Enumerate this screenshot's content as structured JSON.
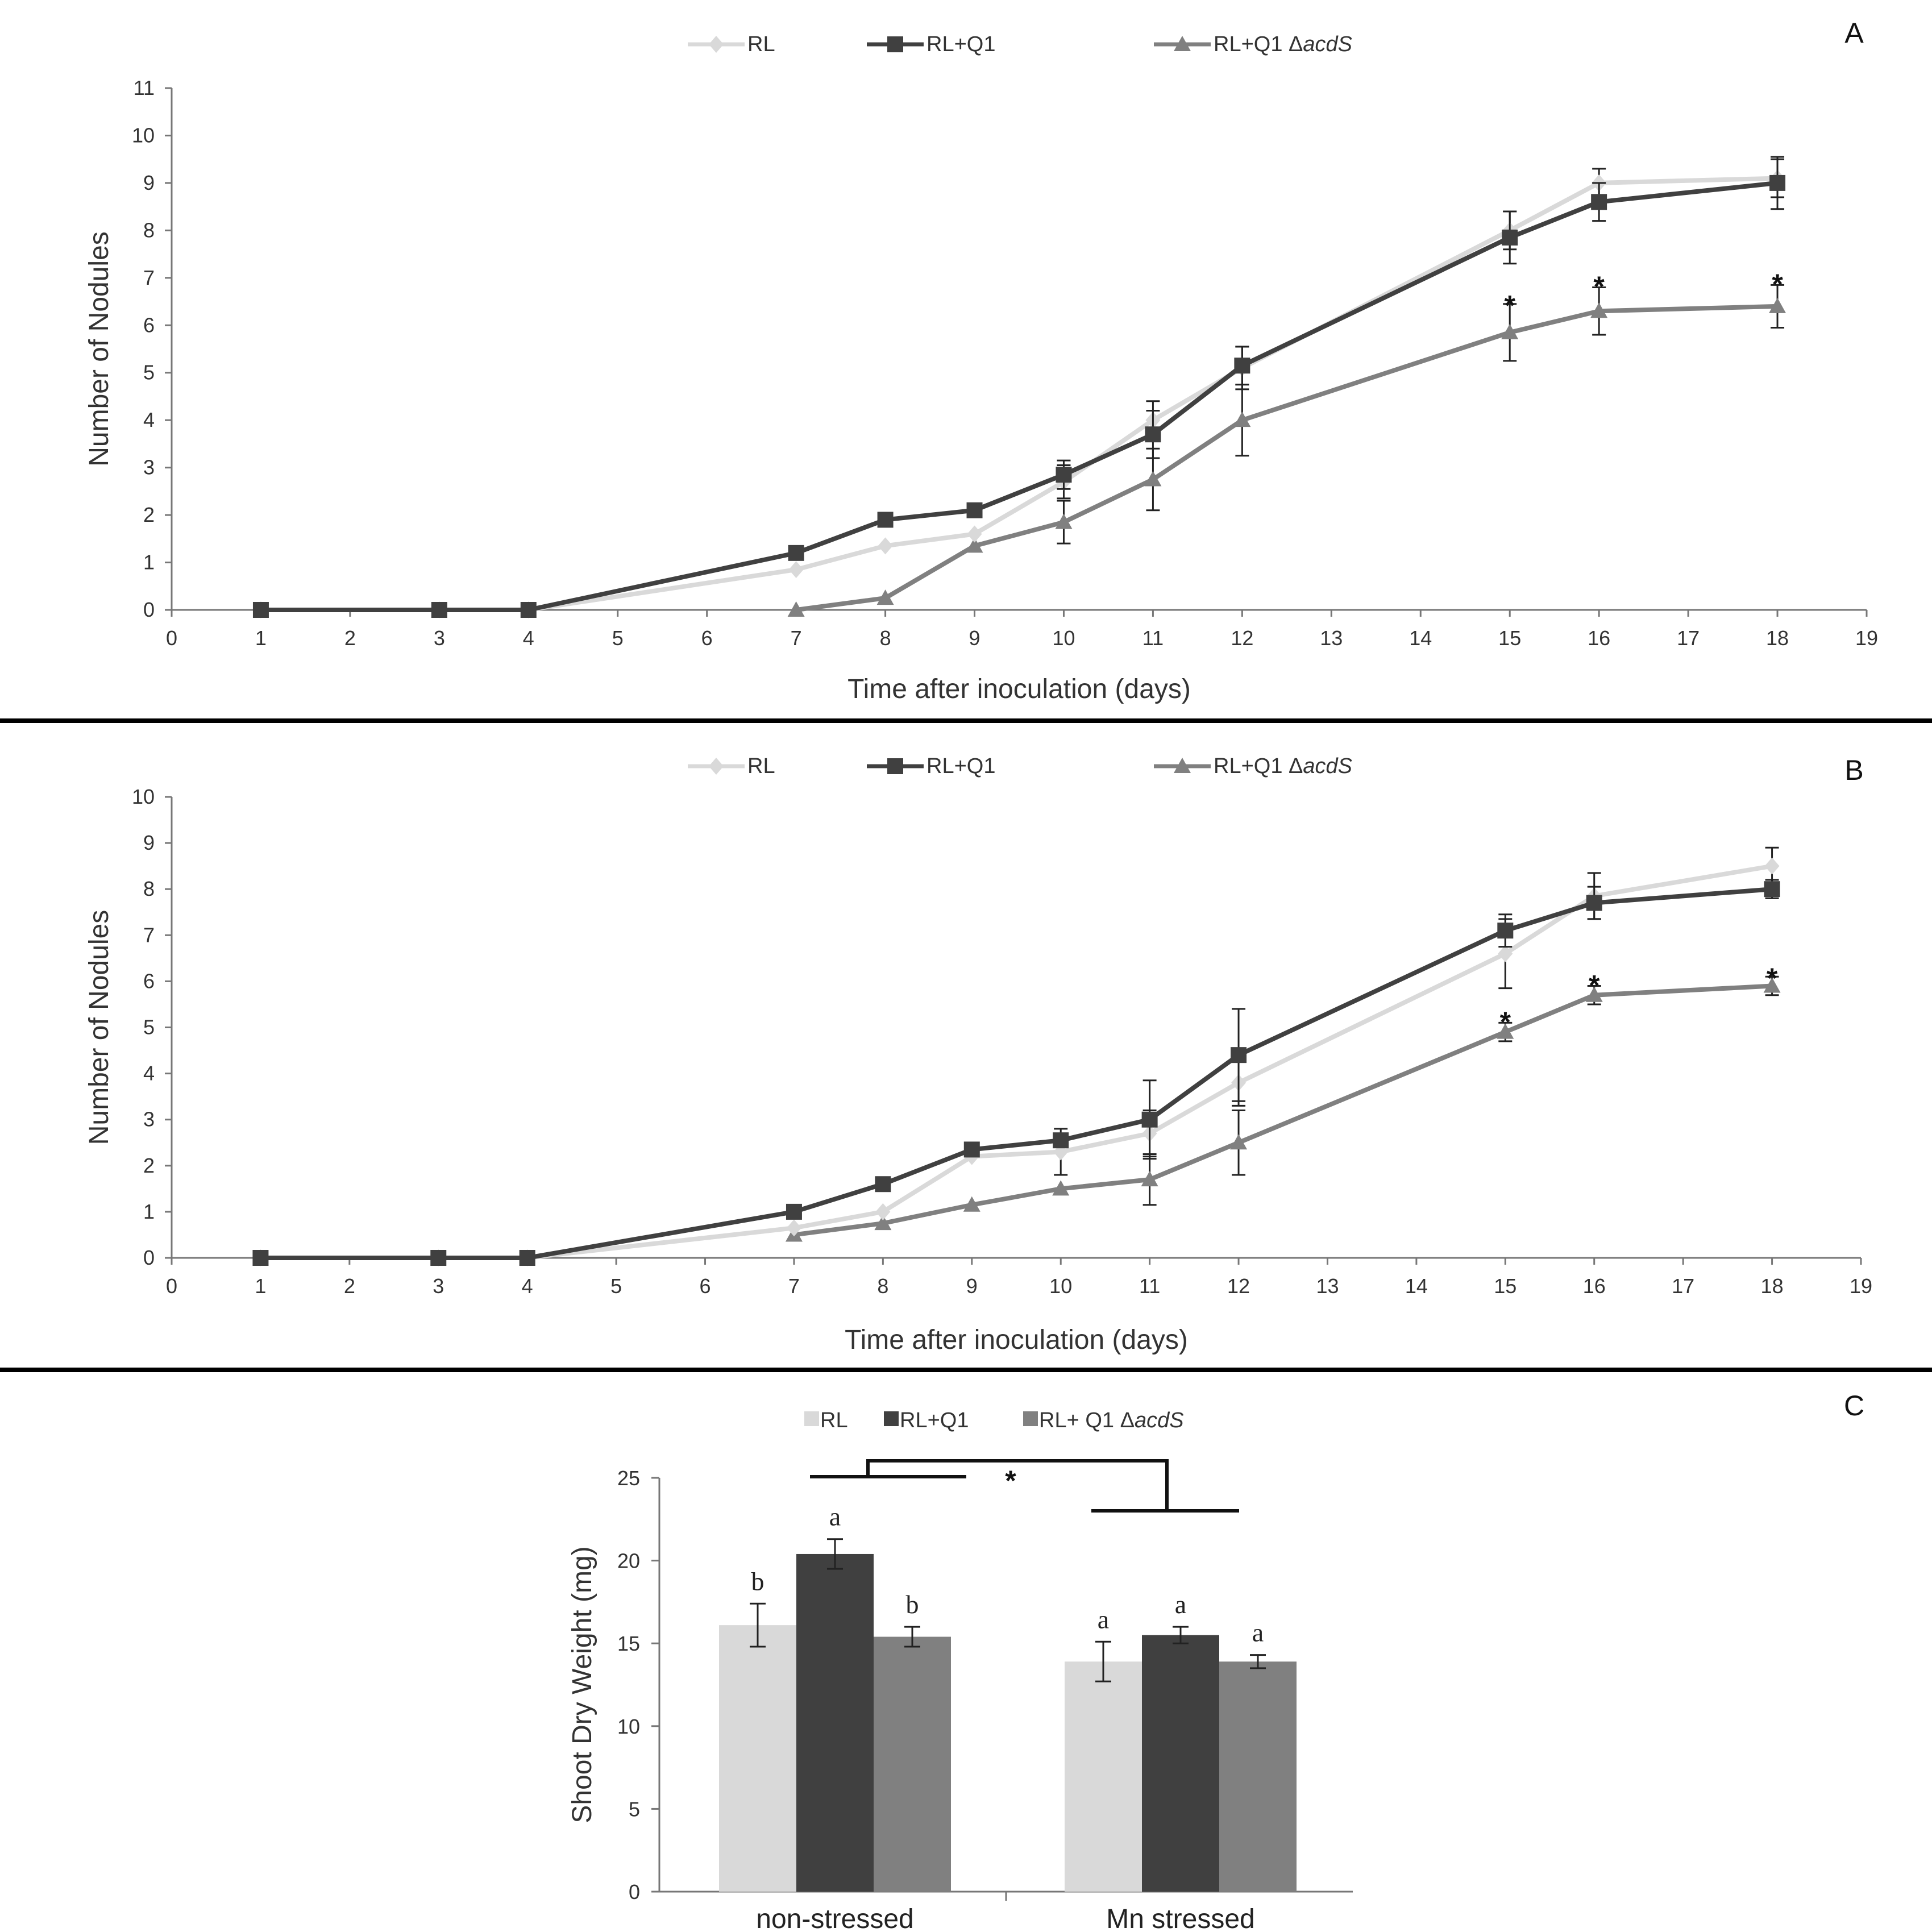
{
  "colors": {
    "RL": "#d9d9d9",
    "RLQ1": "#404040",
    "RLQ1acdS": "#808080",
    "axis": "#777777"
  },
  "chart_data": [
    {
      "panel": "A",
      "type": "line",
      "xlabel": "Time after inoculation (days)",
      "ylabel": "Number of Nodules",
      "xlim": [
        0,
        19
      ],
      "ylim": [
        0,
        11
      ],
      "xticks": [
        0,
        1,
        2,
        3,
        4,
        5,
        6,
        7,
        8,
        9,
        10,
        11,
        12,
        13,
        14,
        15,
        16,
        17,
        18,
        19
      ],
      "yticks": [
        0,
        1,
        2,
        3,
        4,
        5,
        6,
        7,
        8,
        9,
        10,
        11
      ],
      "x": [
        1,
        3,
        4,
        7,
        8,
        9,
        10,
        11,
        12,
        15,
        16,
        18
      ],
      "legend": [
        {
          "prefix": "RL",
          "italic": ""
        },
        {
          "prefix": "RL+Q1",
          "italic": ""
        },
        {
          "prefix": "RL+Q1 Δ",
          "italic": "acdS"
        }
      ],
      "series": [
        {
          "name": "RL",
          "marker": "diamond",
          "values": [
            0,
            0,
            0,
            0.85,
            1.35,
            1.6,
            2.7,
            4.0,
            5.1,
            8.0,
            9.0,
            9.1
          ],
          "errors": [
            0,
            0,
            0,
            0,
            0,
            0,
            0.35,
            0.4,
            0.45,
            0.4,
            0.3,
            0.4
          ]
        },
        {
          "name": "RL+Q1",
          "marker": "square",
          "values": [
            0,
            0,
            0,
            1.2,
            1.9,
            2.1,
            2.85,
            3.7,
            5.15,
            7.85,
            8.6,
            9.0
          ],
          "errors": [
            0,
            0,
            0,
            0,
            0,
            0,
            0.3,
            0.5,
            0.4,
            0.55,
            0.4,
            0.55
          ]
        },
        {
          "name": "RL+Q1 ΔacdS",
          "marker": "triangle",
          "values": [
            null,
            null,
            null,
            0,
            0.25,
            1.35,
            1.85,
            2.75,
            4.0,
            5.85,
            6.3,
            6.4
          ],
          "errors": [
            0,
            0,
            0,
            0,
            0,
            0,
            0.45,
            0.65,
            0.75,
            0.6,
            0.5,
            0.45
          ]
        }
      ],
      "annotations": [
        {
          "label": "*",
          "x": 15,
          "y": 6.55
        },
        {
          "label": "*",
          "x": 16,
          "y": 6.95
        },
        {
          "label": "*",
          "x": 18,
          "y": 7.0
        }
      ]
    },
    {
      "panel": "B",
      "type": "line",
      "xlabel": "Time after inoculation (days)",
      "ylabel": "Number of Nodules",
      "xlim": [
        0,
        19
      ],
      "ylim": [
        0,
        10
      ],
      "xticks": [
        0,
        1,
        2,
        3,
        4,
        5,
        6,
        7,
        8,
        9,
        10,
        11,
        12,
        13,
        14,
        15,
        16,
        17,
        18,
        19
      ],
      "yticks": [
        0,
        1,
        2,
        3,
        4,
        5,
        6,
        7,
        8,
        9,
        10
      ],
      "x": [
        1,
        3,
        4,
        7,
        8,
        9,
        10,
        11,
        12,
        15,
        16,
        18
      ],
      "legend": [
        {
          "prefix": "RL",
          "italic": ""
        },
        {
          "prefix": "RL+Q1",
          "italic": ""
        },
        {
          "prefix": "RL+Q1 Δ",
          "italic": "acdS"
        }
      ],
      "series": [
        {
          "name": "RL",
          "marker": "diamond",
          "values": [
            0,
            0,
            0,
            0.65,
            1.0,
            2.2,
            2.3,
            2.7,
            3.8,
            6.6,
            7.85,
            8.5
          ],
          "errors": [
            0,
            0,
            0,
            0,
            0,
            0,
            0.5,
            0.5,
            0.5,
            0.75,
            0.5,
            0.4
          ]
        },
        {
          "name": "RL+Q1",
          "marker": "square",
          "values": [
            0,
            0,
            0,
            1.0,
            1.6,
            2.35,
            2.55,
            3.0,
            4.4,
            7.1,
            7.7,
            8.0
          ],
          "errors": [
            0,
            0,
            0,
            0,
            0,
            0,
            0.15,
            0.85,
            1.0,
            0.35,
            0.35,
            0.2
          ]
        },
        {
          "name": "RL+Q1 ΔacdS",
          "marker": "triangle",
          "values": [
            null,
            null,
            null,
            0.5,
            0.75,
            1.15,
            1.5,
            1.7,
            2.5,
            4.9,
            5.7,
            5.9
          ],
          "errors": [
            0,
            0,
            0,
            0,
            0,
            0,
            0,
            0.55,
            0.7,
            0.2,
            0.2,
            0.2
          ]
        }
      ],
      "annotations": [
        {
          "label": "*",
          "x": 15,
          "y": 5.25
        },
        {
          "label": "*",
          "x": 16,
          "y": 6.05
        },
        {
          "label": "*",
          "x": 18,
          "y": 6.2
        }
      ]
    },
    {
      "panel": "C",
      "type": "bar",
      "ylabel": "Shoot Dry Weight (mg)",
      "ylim": [
        0,
        25
      ],
      "yticks": [
        0,
        5,
        10,
        15,
        20,
        25
      ],
      "categories": [
        "non-stressed",
        "Mn stressed"
      ],
      "legend": [
        {
          "prefix": "RL",
          "italic": ""
        },
        {
          "prefix": "RL+Q1",
          "italic": ""
        },
        {
          "prefix": "RL+ Q1 Δ",
          "italic": "acdS"
        }
      ],
      "series": [
        {
          "name": "RL",
          "values": [
            16.1,
            13.9
          ],
          "errors": [
            1.3,
            1.2
          ],
          "letters": [
            "b",
            "a"
          ]
        },
        {
          "name": "RL+Q1",
          "values": [
            20.4,
            15.5
          ],
          "errors": [
            0.9,
            0.5
          ],
          "letters": [
            "a",
            "a"
          ]
        },
        {
          "name": "RL+ Q1 ΔacdS",
          "values": [
            15.4,
            13.9
          ],
          "errors": [
            0.6,
            0.4
          ],
          "letters": [
            "b",
            "a"
          ]
        }
      ],
      "significance": {
        "label": "*",
        "between": [
          "non-stressed",
          "Mn stressed"
        ]
      }
    }
  ]
}
